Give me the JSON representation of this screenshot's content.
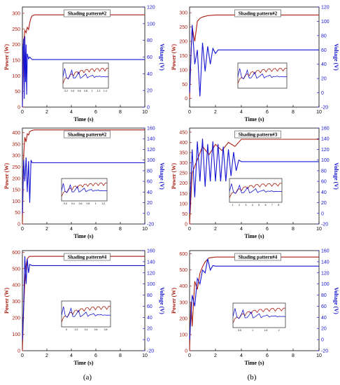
{
  "colors": {
    "power": "#aa1e12",
    "voltage": "#1414d2",
    "axis": "#000000"
  },
  "panel_labels": [
    "(a)",
    "(b)"
  ],
  "chart_data": [
    {
      "type": "line",
      "title": "Shading pattern#2",
      "xlabel": "Time (s)",
      "ylabel_left": "Power (W)",
      "ylabel_right": "Voltage (V)",
      "xlim": [
        0,
        10
      ],
      "xticks": [
        0,
        2,
        4,
        6,
        8,
        10
      ],
      "ylim_left": [
        0,
        320
      ],
      "yticks_left": [
        0,
        50,
        100,
        150,
        200,
        250,
        300
      ],
      "ylim_right": [
        0,
        120
      ],
      "yticks_right": [
        0,
        20,
        40,
        60,
        80,
        100,
        120
      ],
      "series": [
        {
          "name": "Power",
          "axis": "left",
          "x": [
            0,
            0.1,
            0.2,
            0.3,
            0.4,
            0.5,
            0.6,
            0.7,
            0.8,
            1.0,
            1.5,
            10
          ],
          "y": [
            0,
            200,
            245,
            238,
            255,
            248,
            270,
            285,
            292,
            295,
            295,
            295
          ]
        },
        {
          "name": "Voltage",
          "axis": "right",
          "x": [
            0,
            0.05,
            0.1,
            0.15,
            0.2,
            0.25,
            0.3,
            0.35,
            0.4,
            0.5,
            0.6,
            0.8,
            1.0,
            10
          ],
          "y": [
            0,
            70,
            82,
            10,
            85,
            30,
            75,
            15,
            64,
            58,
            60,
            57,
            57,
            57
          ]
        }
      ],
      "inset": {
        "xticks": [
          "0.2",
          "0.4",
          "0.6",
          "0.8",
          "1",
          "1.2",
          "1.4"
        ]
      }
    },
    {
      "type": "line",
      "title": "Shading pattern#2",
      "xlabel": "Time (s)",
      "ylabel_left": "Power (W)",
      "ylabel_right": "Voltage (V)",
      "xlim": [
        0,
        10
      ],
      "xticks": [
        0,
        2,
        4,
        6,
        8,
        10
      ],
      "ylim_left": [
        -30,
        320
      ],
      "yticks_left": [
        0,
        50,
        100,
        150,
        200,
        250,
        300
      ],
      "ylim_right": [
        -20,
        120
      ],
      "yticks_right": [
        -20,
        0,
        20,
        40,
        60,
        80,
        100,
        120
      ],
      "series": [
        {
          "name": "Power",
          "axis": "left",
          "x": [
            0,
            0.1,
            0.2,
            0.4,
            0.6,
            0.8,
            1.0,
            1.4,
            2.0,
            10
          ],
          "y": [
            0,
            150,
            250,
            200,
            270,
            280,
            285,
            290,
            292,
            292
          ]
        },
        {
          "name": "Voltage",
          "axis": "right",
          "x": [
            0,
            0.2,
            0.4,
            0.6,
            0.8,
            1.0,
            1.2,
            1.4,
            1.6,
            1.8,
            2.0,
            2.2,
            2.5,
            10
          ],
          "y": [
            0,
            95,
            40,
            60,
            -5,
            70,
            30,
            65,
            40,
            62,
            55,
            60,
            60,
            60
          ]
        }
      ],
      "inset": {
        "xticks": []
      }
    },
    {
      "type": "line",
      "title": "Shading pattern#2",
      "xlabel": "Time (s)",
      "ylabel_left": "Power (W)",
      "ylabel_right": "Voltage (V)",
      "xlim": [
        0,
        10
      ],
      "xticks": [
        0,
        2,
        4,
        6,
        8,
        10
      ],
      "ylim_left": [
        0,
        420
      ],
      "yticks_left": [
        0,
        50,
        100,
        150,
        200,
        250,
        300,
        350,
        400
      ],
      "ylim_right": [
        -20,
        160
      ],
      "yticks_right": [
        -20,
        0,
        20,
        40,
        60,
        80,
        100,
        120,
        140,
        160
      ],
      "series": [
        {
          "name": "Power",
          "axis": "left",
          "x": [
            0,
            0.1,
            0.2,
            0.3,
            0.4,
            0.5,
            0.6,
            0.8,
            1.0,
            10
          ],
          "y": [
            0,
            300,
            380,
            360,
            395,
            390,
            405,
            410,
            412,
            412
          ]
        },
        {
          "name": "Voltage",
          "axis": "right",
          "x": [
            0,
            0.1,
            0.2,
            0.3,
            0.4,
            0.5,
            0.6,
            0.7,
            0.8,
            1.0,
            10
          ],
          "y": [
            0,
            100,
            60,
            105,
            40,
            98,
            20,
            100,
            95,
            95,
            95
          ]
        }
      ],
      "inset": {
        "xticks": [
          "0.2",
          "0.4",
          "0.6",
          "0.8",
          "1",
          "1.2"
        ]
      }
    },
    {
      "type": "line",
      "title": "Shading pattern#3",
      "xlabel": "Time (s)",
      "ylabel_left": "Power (W)",
      "ylabel_right": "Voltage (V)",
      "xlim": [
        0,
        10
      ],
      "xticks": [
        0,
        2,
        4,
        6,
        8,
        10
      ],
      "ylim_left": [
        0,
        470
      ],
      "yticks_left": [
        0,
        50,
        100,
        150,
        200,
        250,
        300,
        350,
        400,
        450
      ],
      "ylim_right": [
        -20,
        160
      ],
      "yticks_right": [
        -20,
        0,
        20,
        40,
        60,
        80,
        100,
        120,
        140,
        160
      ],
      "series": [
        {
          "name": "Power",
          "axis": "left",
          "x": [
            0,
            0.2,
            0.5,
            1.0,
            1.5,
            2.0,
            2.5,
            3.0,
            3.5,
            4.0,
            10
          ],
          "y": [
            0,
            250,
            300,
            380,
            340,
            390,
            360,
            400,
            380,
            415,
            415
          ]
        },
        {
          "name": "Voltage",
          "axis": "right",
          "x": [
            0,
            0.2,
            0.4,
            0.6,
            0.8,
            1.0,
            1.2,
            1.4,
            1.6,
            1.8,
            2.0,
            2.2,
            2.4,
            2.6,
            2.8,
            3.0,
            3.2,
            3.4,
            3.6,
            3.8,
            4.0,
            10
          ],
          "y": [
            0,
            120,
            30,
            135,
            60,
            140,
            50,
            130,
            60,
            135,
            60,
            130,
            60,
            125,
            60,
            120,
            70,
            115,
            80,
            100,
            97,
            97
          ]
        }
      ],
      "inset": {
        "xticks": [
          "1",
          "2",
          "3",
          "4",
          "5",
          "6",
          "7",
          "8"
        ]
      }
    },
    {
      "type": "line",
      "title": "Shading pattern#4",
      "xlabel": "Time (s)",
      "ylabel_left": "Power (W)",
      "ylabel_right": "Voltage (V)",
      "xlim": [
        0,
        10
      ],
      "xticks": [
        0,
        2,
        4,
        6,
        8,
        10
      ],
      "ylim_left": [
        0,
        610
      ],
      "yticks_left": [
        0,
        100,
        200,
        300,
        400,
        500,
        600
      ],
      "ylim_right": [
        -20,
        160
      ],
      "yticks_right": [
        -20,
        0,
        20,
        40,
        60,
        80,
        100,
        120,
        140,
        160
      ],
      "series": [
        {
          "name": "Power",
          "axis": "left",
          "x": [
            0,
            0.1,
            0.2,
            0.3,
            0.4,
            0.5,
            0.6,
            0.8,
            1.0,
            10
          ],
          "y": [
            0,
            250,
            420,
            520,
            560,
            570,
            575,
            575,
            575,
            575
          ]
        },
        {
          "name": "Voltage",
          "axis": "right",
          "x": [
            0,
            0.1,
            0.2,
            0.3,
            0.4,
            0.5,
            0.6,
            0.8,
            10
          ],
          "y": [
            0,
            60,
            150,
            100,
            145,
            120,
            135,
            133,
            133
          ]
        }
      ],
      "inset": {
        "xticks": [
          "0",
          "0.2",
          "0.4",
          "0.6",
          "0.8"
        ]
      }
    },
    {
      "type": "line",
      "title": "Shading pattern#4",
      "xlabel": "Time (s)",
      "ylabel_left": "Power (W)",
      "ylabel_right": "Voltage (V)",
      "xlim": [
        0,
        10
      ],
      "xticks": [
        0,
        2,
        4,
        6,
        8,
        10
      ],
      "ylim_left": [
        0,
        620
      ],
      "yticks_left": [
        0,
        100,
        200,
        300,
        400,
        500,
        600
      ],
      "ylim_right": [
        -20,
        160
      ],
      "yticks_right": [
        -20,
        0,
        20,
        40,
        60,
        80,
        100,
        120,
        140,
        160
      ],
      "series": [
        {
          "name": "Power",
          "axis": "left",
          "x": [
            0,
            0.1,
            0.2,
            0.4,
            0.6,
            0.8,
            1.0,
            1.2,
            1.5,
            2.0,
            10
          ],
          "y": [
            0,
            300,
            150,
            430,
            380,
            480,
            520,
            550,
            575,
            580,
            580
          ]
        },
        {
          "name": "Voltage",
          "axis": "right",
          "x": [
            0,
            0.2,
            0.4,
            0.6,
            0.8,
            1.0,
            1.2,
            1.4,
            1.6,
            1.8,
            2.0,
            10
          ],
          "y": [
            0,
            80,
            60,
            110,
            100,
            125,
            120,
            145,
            125,
            133,
            132,
            132
          ]
        }
      ],
      "inset": {
        "xticks": [
          "0.5",
          "1",
          "1.5",
          "2"
        ]
      }
    }
  ]
}
